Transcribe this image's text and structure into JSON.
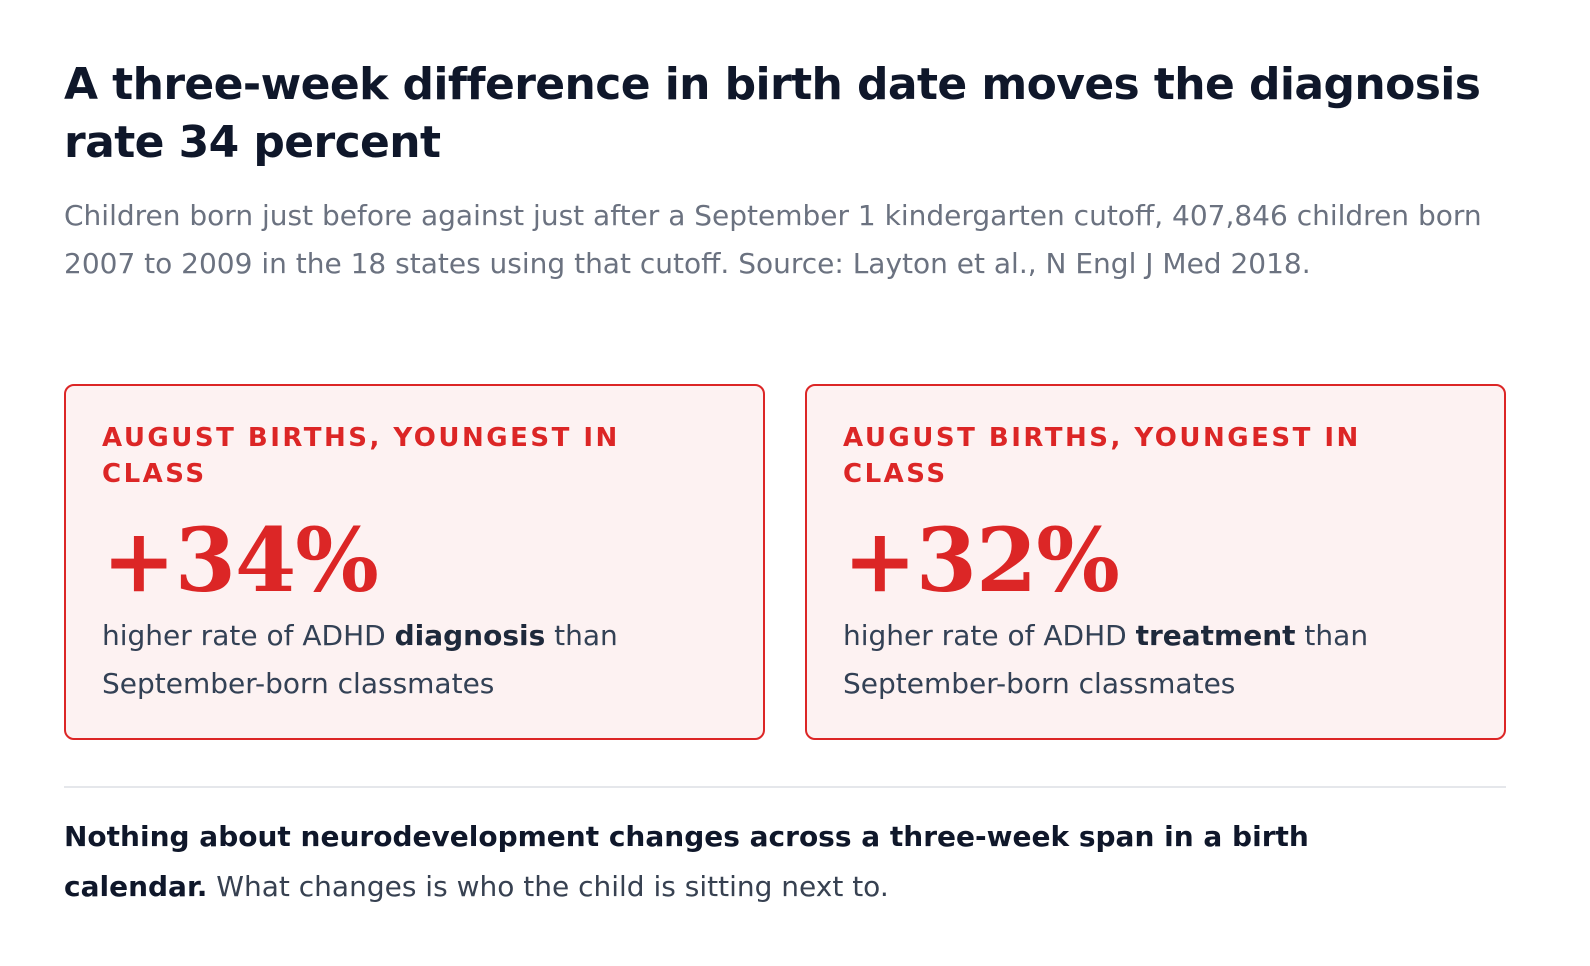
{
  "header": {
    "title": "A three-week difference in birth date moves the diagnosis rate 34 percent",
    "subtitle": "Children born just before against just after a September 1 kindergarten cutoff, 407,846 children born 2007 to 2009 in the 18 states using that cutoff. Source: Layton et al., N Engl J Med 2018."
  },
  "cards": [
    {
      "kicker": "AUGUST BIRTHS, YOUNGEST IN CLASS",
      "stat": "+34%",
      "desc_before": "higher rate of ADHD ",
      "desc_strong": "diagnosis",
      "desc_after": " than September-born classmates"
    },
    {
      "kicker": "AUGUST BIRTHS, YOUNGEST IN CLASS",
      "stat": "+32%",
      "desc_before": "higher rate of ADHD ",
      "desc_strong": "treatment",
      "desc_after": " than September-born classmates"
    }
  ],
  "note": {
    "strong": "Nothing about neurodevelopment changes across a three-week span in a birth calendar.",
    "rest": " What changes is who the child is sitting next to."
  },
  "colors": {
    "accent": "#dc2626",
    "card_background": "#fdf2f2",
    "title": "#0f172a",
    "muted": "#6b7280"
  }
}
